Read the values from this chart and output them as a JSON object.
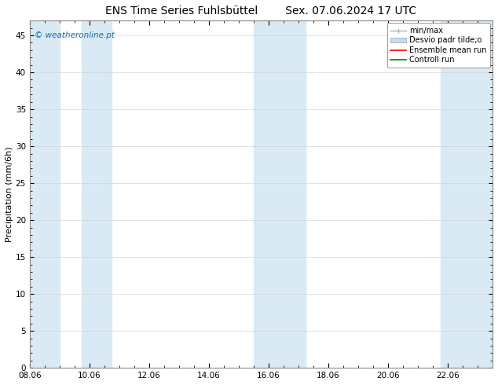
{
  "title_left": "ENS Time Series Fuhlsbüttel",
  "title_right": "Sex. 07.06.2024 17 UTC",
  "ylabel": "Precipitation (mm/6h)",
  "xlabel_ticks": [
    "08.06",
    "10.06",
    "12.06",
    "14.06",
    "16.06",
    "18.06",
    "20.06",
    "22.06"
  ],
  "xtick_positions": [
    0,
    2,
    4,
    6,
    8,
    10,
    12,
    14
  ],
  "xlim": [
    0,
    15.5
  ],
  "ylim": [
    0,
    47
  ],
  "yticks": [
    0,
    5,
    10,
    15,
    20,
    25,
    30,
    35,
    40,
    45
  ],
  "shaded_bands": [
    [
      0.0,
      1.0
    ],
    [
      1.75,
      2.75
    ],
    [
      7.5,
      9.25
    ],
    [
      13.75,
      15.5
    ]
  ],
  "band_color": "#daeaf5",
  "background_color": "#ffffff",
  "axes_background": "#ffffff",
  "legend_items": [
    {
      "label": "min/max",
      "color": "#b0c8d8",
      "type": "minmax"
    },
    {
      "label": "Desvio padr tilde;o",
      "color": "#c8dce8",
      "type": "fill"
    },
    {
      "label": "Ensemble mean run",
      "color": "#ff0000",
      "type": "line"
    },
    {
      "label": "Controll run",
      "color": "#008000",
      "type": "line"
    }
  ],
  "watermark": "© weatheronline.pt",
  "watermark_color": "#1a6abf",
  "title_fontsize": 10,
  "tick_fontsize": 7.5,
  "ylabel_fontsize": 8,
  "legend_fontsize": 7,
  "grid_color": "#cccccc",
  "spine_color": "#888888"
}
